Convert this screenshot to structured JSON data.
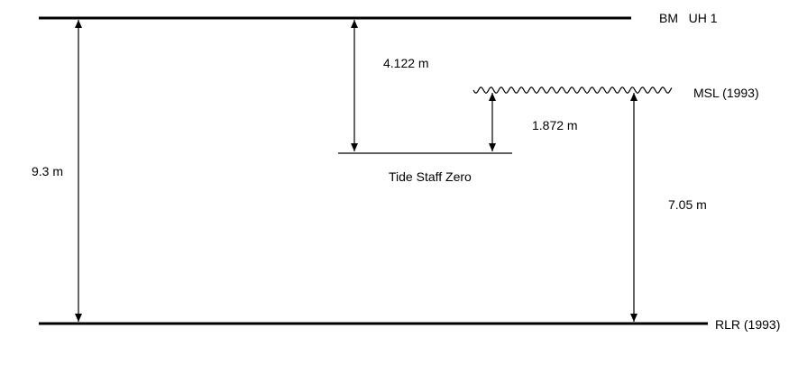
{
  "labels": {
    "bm": "BM   UH 1",
    "msl": "MSL (1993)",
    "rlr": "RLR (1993)",
    "tide_staff_zero": "Tide Staff Zero"
  },
  "measurements": {
    "bm_to_rlr": "9.3 m",
    "bm_to_tide_staff_zero": "4.122 m",
    "tide_staff_zero_to_msl": "1.872 m",
    "msl_to_rlr": "7.05 m"
  },
  "colors": {
    "stroke": "#000000",
    "background": "#ffffff"
  }
}
